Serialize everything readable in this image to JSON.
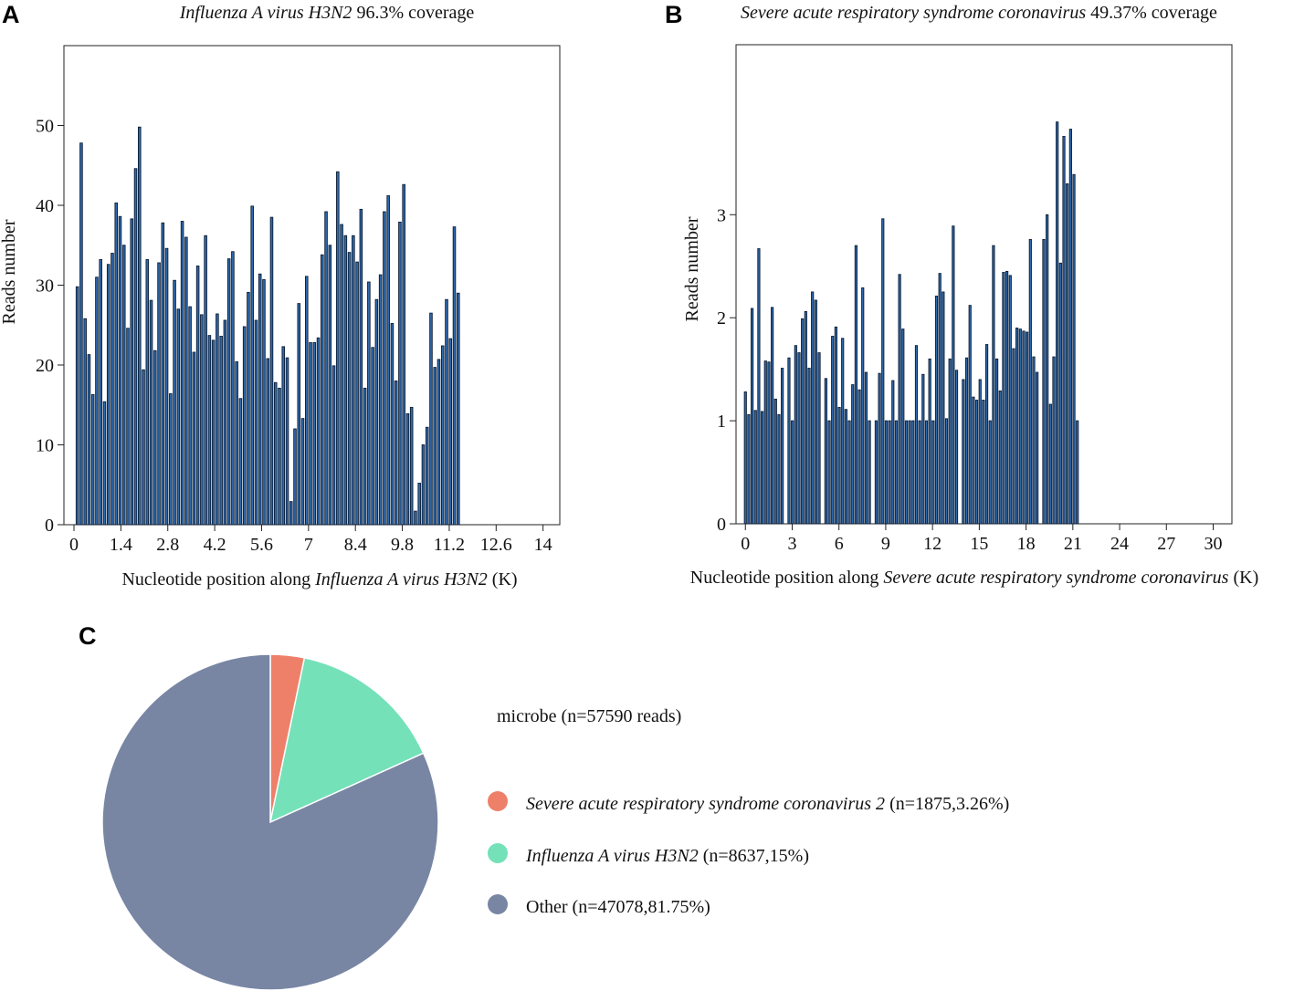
{
  "panels": {
    "a": "A",
    "b": "B",
    "c": "C"
  },
  "colors": {
    "bar_fill": "#2f6aad",
    "bar_edge": "#0b1c33",
    "sars": "#ee806a",
    "flu": "#74e1b9",
    "other": "#7886a4"
  },
  "chart_data": [
    {
      "type": "bar",
      "panel": "A",
      "title_italic": "Influenza A virus H3N2",
      "title_rest": " 96.3% coverage",
      "xlabel_prefix": "Nucleotide position along ",
      "xlabel_italic": "Influenza A virus H3N2",
      "xlabel_suffix": " (K)",
      "ylabel": "Reads number",
      "xlim": [
        -0.3,
        14.5
      ],
      "ylim": [
        0,
        60
      ],
      "x_ticks": [
        0,
        1.4,
        2.8,
        4.2,
        5.6,
        7,
        8.4,
        9.8,
        11.2,
        12.6,
        14
      ],
      "x_tick_labels": [
        "0",
        "1.4",
        "2.8",
        "4.2",
        "5.6",
        "7",
        "8.4",
        "9.8",
        "11.2",
        "12.6",
        "14"
      ],
      "y_ticks": [
        0,
        10,
        20,
        30,
        40,
        50
      ],
      "bar_start": 0.1,
      "bar_step": 0.116,
      "values": [
        29.8,
        47.8,
        25.8,
        21.3,
        16.3,
        31.0,
        33.2,
        15.4,
        32.6,
        34.0,
        40.3,
        38.6,
        35.0,
        24.6,
        38.3,
        44.6,
        49.8,
        19.4,
        33.2,
        28.1,
        21.8,
        32.8,
        37.8,
        34.6,
        16.4,
        30.6,
        27.0,
        38.0,
        36.0,
        27.3,
        21.6,
        32.4,
        26.3,
        36.2,
        23.7,
        23.1,
        26.4,
        23.6,
        25.6,
        33.3,
        34.2,
        20.4,
        15.8,
        24.8,
        29.1,
        39.9,
        25.6,
        31.4,
        30.7,
        20.8,
        38.5,
        17.8,
        17.1,
        22.3,
        20.9,
        2.9,
        12.0,
        27.7,
        13.3,
        31.1,
        22.8,
        22.8,
        23.4,
        33.8,
        39.2,
        35.0,
        19.9,
        44.2,
        37.6,
        36.2,
        34.1,
        36.2,
        32.9,
        39.5,
        17.1,
        30.4,
        22.2,
        28.2,
        31.3,
        39.2,
        41.2,
        25.2,
        18.0,
        37.9,
        42.6,
        13.9,
        14.7,
        1.7,
        5.2,
        10.0,
        12.2,
        26.5,
        19.7,
        20.7,
        22.4,
        28.2,
        23.3,
        37.3,
        29.0
      ]
    },
    {
      "type": "bar",
      "panel": "B",
      "title_italic": "Severe acute respiratory syndrome coronavirus",
      "title_rest": " 49.37% coverage",
      "xlabel_prefix": "Nucleotide position along ",
      "xlabel_italic": "Severe acute respiratory syndrome coronavirus",
      "xlabel_suffix": " (K)",
      "ylabel": "Reads number",
      "xlim": [
        -0.6,
        31.2
      ],
      "ylim": [
        0,
        4.65
      ],
      "x_ticks": [
        0,
        3,
        6,
        9,
        12,
        15,
        18,
        21,
        24,
        27,
        30
      ],
      "x_tick_labels": [
        "0",
        "3",
        "6",
        "9",
        "12",
        "15",
        "18",
        "21",
        "24",
        "27",
        "30"
      ],
      "y_ticks": [
        0,
        1,
        2,
        3
      ],
      "bar_start": 0.0,
      "bar_step": 0.215,
      "values": [
        1.28,
        1.06,
        2.09,
        1.1,
        2.67,
        1.09,
        1.58,
        1.57,
        2.1,
        1.21,
        1.06,
        1.51,
        0,
        1.61,
        1.0,
        1.73,
        1.66,
        1.99,
        2.06,
        1.51,
        2.25,
        2.17,
        1.66,
        0,
        1.41,
        1.0,
        1.82,
        1.91,
        1.13,
        1.8,
        1.11,
        1.0,
        1.35,
        2.7,
        1.3,
        2.29,
        1.47,
        1.0,
        0,
        1.0,
        1.46,
        2.96,
        1.0,
        1.0,
        1.39,
        1.0,
        2.42,
        1.89,
        1.0,
        1.0,
        1.0,
        1.73,
        1.0,
        1.45,
        1.0,
        1.6,
        1.0,
        2.21,
        2.43,
        2.25,
        1.02,
        1.6,
        2.89,
        1.49,
        0,
        1.4,
        1.61,
        2.12,
        1.23,
        1.2,
        1.4,
        1.2,
        1.74,
        1.0,
        2.7,
        1.6,
        1.29,
        2.44,
        2.45,
        2.41,
        1.7,
        1.9,
        1.89,
        1.87,
        1.86,
        2.76,
        1.62,
        1.47,
        0,
        2.76,
        3.0,
        1.16,
        1.62,
        3.9,
        2.53,
        3.76,
        3.3,
        3.83,
        3.39,
        1.0
      ]
    },
    {
      "type": "pie",
      "panel": "C",
      "title": "microbe (n=57590 reads)",
      "slices": [
        {
          "name": "Severe acute respiratory syndrome coronavirus 2",
          "detail": " (n=1875,3.26%)",
          "value": 3.26,
          "color_key": "sars"
        },
        {
          "name": "Influenza A virus H3N2",
          "detail": " (n=8637,15%)",
          "value": 15.0,
          "color_key": "flu"
        },
        {
          "name": "Other",
          "detail": " (n=47078,81.75%)",
          "value": 81.75,
          "color_key": "other"
        }
      ]
    }
  ]
}
